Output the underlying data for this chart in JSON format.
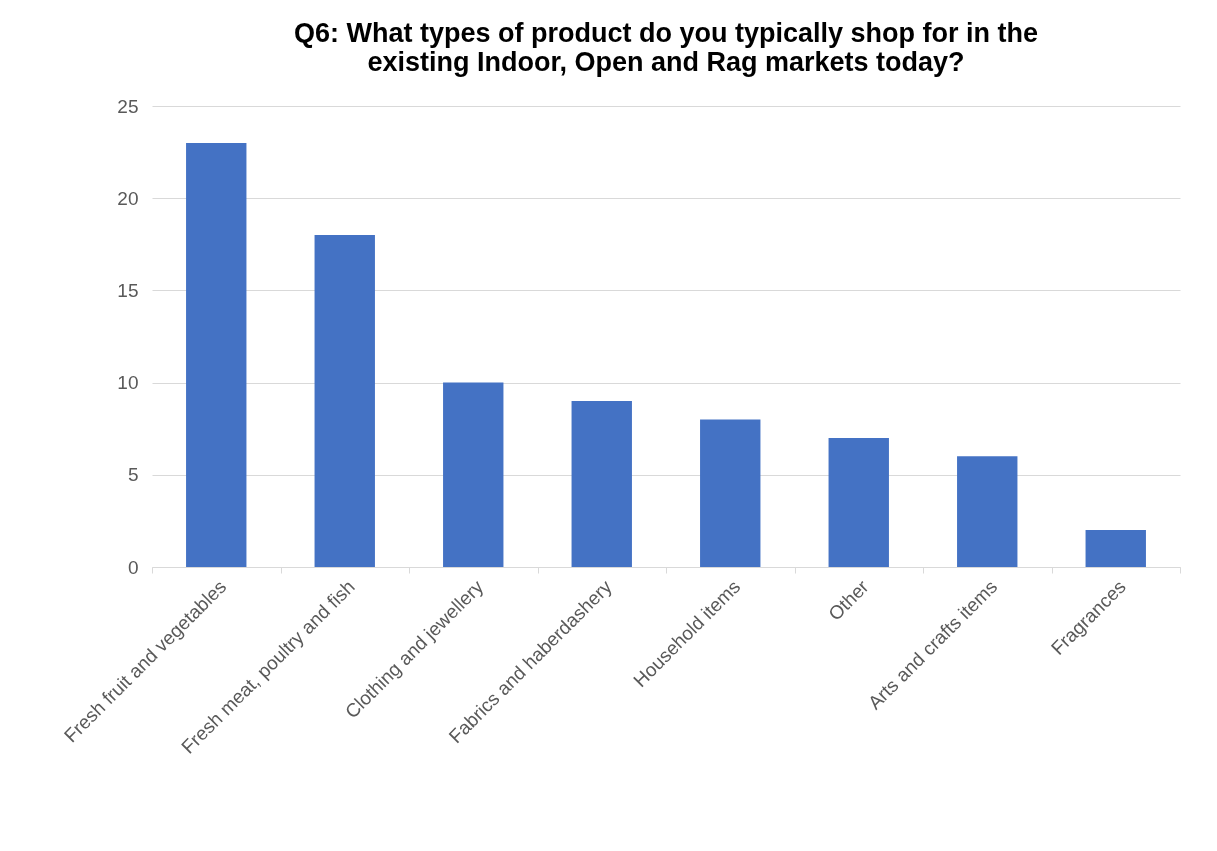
{
  "chart_data": {
    "type": "bar",
    "title": "Q6: What types of product do you typically shop for in the existing Indoor, Open and Rag markets today?",
    "categories": [
      "Fresh fruit and vegetables",
      "Fresh meat, poultry and fish",
      "Clothing and jewellery",
      "Fabrics and haberdashery",
      "Household items",
      "Other",
      "Arts and crafts items",
      "Fragrances"
    ],
    "values": [
      23,
      18,
      10,
      9,
      8,
      7,
      6,
      2
    ],
    "color": "#4472c4",
    "ylim": [
      0,
      25
    ],
    "yticks": [
      0,
      5,
      10,
      15,
      20,
      25
    ],
    "grid": "y"
  }
}
